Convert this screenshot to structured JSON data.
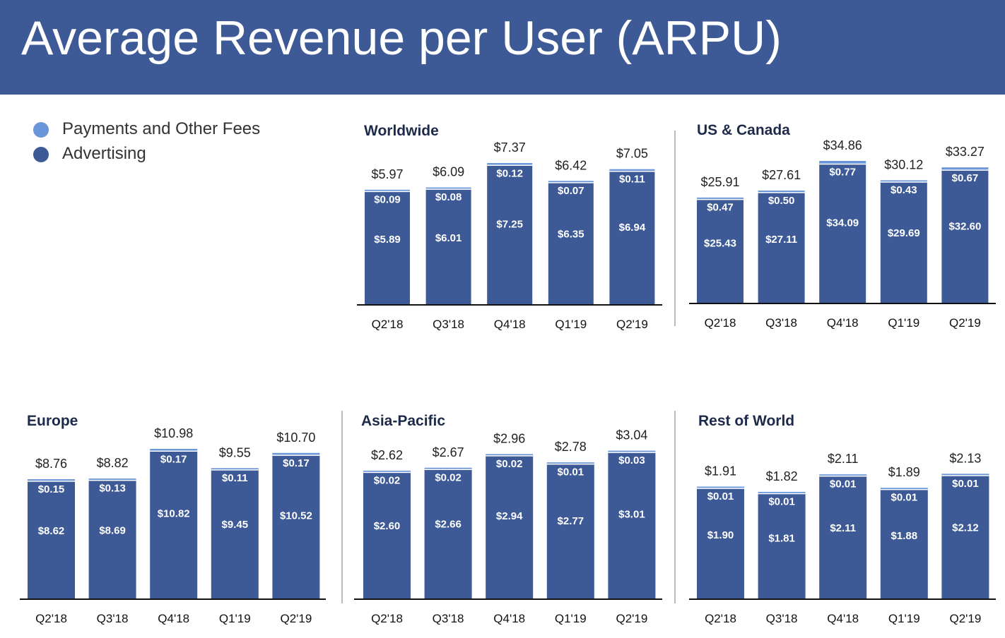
{
  "header": {
    "title": "Average Revenue per User (ARPU)"
  },
  "colors": {
    "header_bg": "#3d5a96",
    "advertising": "#3d5a96",
    "payments": "#6a95d9"
  },
  "legend": {
    "items": [
      {
        "label": "Payments and Other Fees",
        "color": "#6a95d9"
      },
      {
        "label": "Advertising",
        "color": "#3d5a96"
      }
    ]
  },
  "chart_data": [
    {
      "type": "bar",
      "stacked": true,
      "title": "Worldwide",
      "categories": [
        "Q2'18",
        "Q3'18",
        "Q4'18",
        "Q1'19",
        "Q2'19"
      ],
      "totals": [
        "$5.97",
        "$6.09",
        "$7.37",
        "$6.42",
        "$7.05"
      ],
      "series": [
        {
          "name": "Advertising",
          "values": [
            5.89,
            6.01,
            7.25,
            6.35,
            6.94
          ],
          "labels": [
            "$5.89",
            "$6.01",
            "$7.25",
            "$6.35",
            "$6.94"
          ]
        },
        {
          "name": "Payments and Other Fees",
          "values": [
            0.09,
            0.08,
            0.12,
            0.07,
            0.11
          ],
          "labels": [
            "$0.09",
            "$0.08",
            "$0.12",
            "$0.07",
            "$0.11"
          ]
        }
      ]
    },
    {
      "type": "bar",
      "stacked": true,
      "title": "US & Canada",
      "categories": [
        "Q2'18",
        "Q3'18",
        "Q4'18",
        "Q1'19",
        "Q2'19"
      ],
      "totals": [
        "$25.91",
        "$27.61",
        "$34.86",
        "$30.12",
        "$33.27"
      ],
      "series": [
        {
          "name": "Advertising",
          "values": [
            25.43,
            27.11,
            34.09,
            29.69,
            32.6
          ],
          "labels": [
            "$25.43",
            "$27.11",
            "$34.09",
            "$29.69",
            "$32.60"
          ]
        },
        {
          "name": "Payments and Other Fees",
          "values": [
            0.47,
            0.5,
            0.77,
            0.43,
            0.67
          ],
          "labels": [
            "$0.47",
            "$0.50",
            "$0.77",
            "$0.43",
            "$0.67"
          ]
        }
      ]
    },
    {
      "type": "bar",
      "stacked": true,
      "title": "Europe",
      "categories": [
        "Q2'18",
        "Q3'18",
        "Q4'18",
        "Q1'19",
        "Q2'19"
      ],
      "totals": [
        "$8.76",
        "$8.82",
        "$10.98",
        "$9.55",
        "$10.70"
      ],
      "series": [
        {
          "name": "Advertising",
          "values": [
            8.62,
            8.69,
            10.82,
            9.45,
            10.52
          ],
          "labels": [
            "$8.62",
            "$8.69",
            "$10.82",
            "$9.45",
            "$10.52"
          ]
        },
        {
          "name": "Payments and Other Fees",
          "values": [
            0.15,
            0.13,
            0.17,
            0.11,
            0.17
          ],
          "labels": [
            "$0.15",
            "$0.13",
            "$0.17",
            "$0.11",
            "$0.17"
          ]
        }
      ]
    },
    {
      "type": "bar",
      "stacked": true,
      "title": "Asia-Pacific",
      "categories": [
        "Q2'18",
        "Q3'18",
        "Q4'18",
        "Q1'19",
        "Q2'19"
      ],
      "totals": [
        "$2.62",
        "$2.67",
        "$2.96",
        "$2.78",
        "$3.04"
      ],
      "series": [
        {
          "name": "Advertising",
          "values": [
            2.6,
            2.66,
            2.94,
            2.77,
            3.01
          ],
          "labels": [
            "$2.60",
            "$2.66",
            "$2.94",
            "$2.77",
            "$3.01"
          ]
        },
        {
          "name": "Payments and Other Fees",
          "values": [
            0.02,
            0.02,
            0.02,
            0.01,
            0.03
          ],
          "labels": [
            "$0.02",
            "$0.02",
            "$0.02",
            "$0.01",
            "$0.03"
          ]
        }
      ]
    },
    {
      "type": "bar",
      "stacked": true,
      "title": "Rest of World",
      "categories": [
        "Q2'18",
        "Q3'18",
        "Q4'18",
        "Q1'19",
        "Q2'19"
      ],
      "totals": [
        "$1.91",
        "$1.82",
        "$2.11",
        "$1.89",
        "$2.13"
      ],
      "series": [
        {
          "name": "Advertising",
          "values": [
            1.9,
            1.81,
            2.11,
            1.88,
            2.12
          ],
          "labels": [
            "$1.90",
            "$1.81",
            "$2.11",
            "$1.88",
            "$2.12"
          ]
        },
        {
          "name": "Payments and Other Fees",
          "values": [
            0.01,
            0.01,
            0.01,
            0.01,
            0.01
          ],
          "labels": [
            "$0.01",
            "$0.01",
            "$0.01",
            "$0.01",
            "$0.01"
          ]
        }
      ]
    }
  ]
}
